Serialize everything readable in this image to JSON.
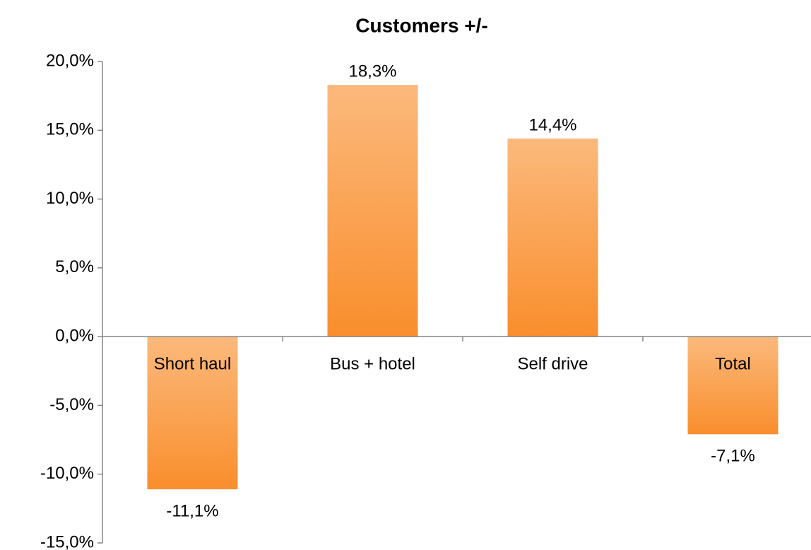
{
  "chart_data": {
    "type": "bar",
    "title": "Customers +/-",
    "categories": [
      "Short haul",
      "Bus + hotel",
      "Self drive",
      "Total"
    ],
    "values": [
      -11.1,
      18.3,
      14.4,
      -7.1
    ],
    "value_labels": [
      "-11,1%",
      "18,3%",
      "14,4%",
      "-7,1%"
    ],
    "color": "#f98e2c",
    "ylim": [
      -15,
      20
    ],
    "yticks": [
      {
        "value": -15,
        "label": "-15,0%"
      },
      {
        "value": -10,
        "label": "-10,0%"
      },
      {
        "value": -5,
        "label": "-5,0%"
      },
      {
        "value": 0,
        "label": "0,0%"
      },
      {
        "value": 5,
        "label": "5,0%"
      },
      {
        "value": 10,
        "label": "10,0%"
      },
      {
        "value": 15,
        "label": "15,0%"
      },
      {
        "value": 20,
        "label": "20,0%"
      }
    ],
    "grid": false
  }
}
